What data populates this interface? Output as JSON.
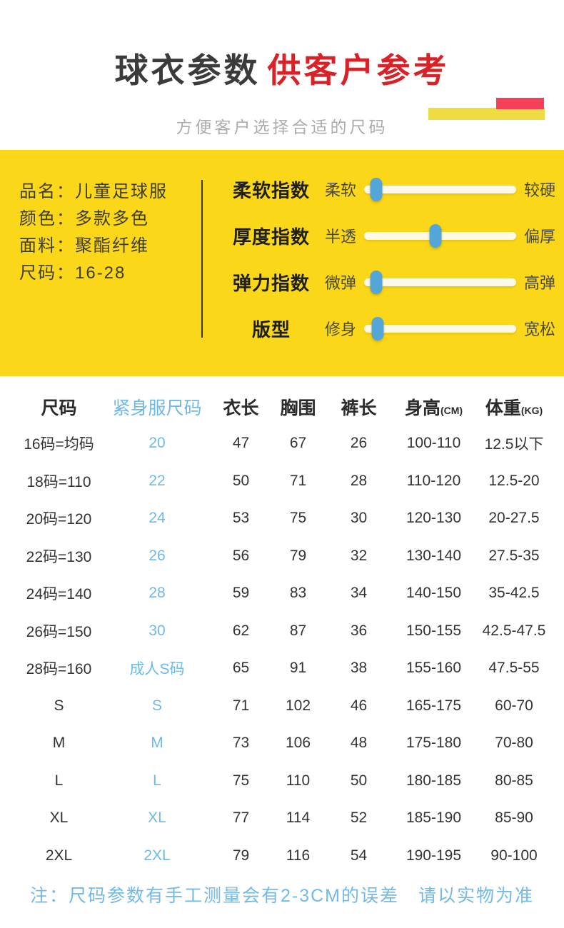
{
  "hero": {
    "title_black": "球衣参数",
    "title_red": "供客户参考",
    "subtitle": "方便客户选择合适的尺码"
  },
  "colors": {
    "panel_yellow": "#FAD718",
    "deco_yellow": "#EFDB42",
    "deco_pink": "#F4415A",
    "title_red": "#D92227",
    "title_dark": "#3B3B3B",
    "subtitle_gray": "#ACACAC",
    "accent_blue": "#6FB9E9",
    "handle_blue": "#54A6D9",
    "track_cream": "#FCF9E9"
  },
  "panel": {
    "info_lines": [
      "品名：儿童足球服",
      "颜色：多款多色",
      "面料：聚酯纤维",
      "尺码：16-28"
    ],
    "sliders": [
      {
        "name": "柔软指数",
        "left": "柔软",
        "right": "较硬",
        "percent": 8
      },
      {
        "name": "厚度指数",
        "left": "半透",
        "right": "偏厚",
        "percent": 47
      },
      {
        "name": "弹力指数",
        "left": "微弹",
        "right": "高弹",
        "percent": 8
      },
      {
        "name": "版型",
        "left": "修身",
        "right": "宽松",
        "percent": 9
      }
    ]
  },
  "table": {
    "headers": [
      {
        "label": "尺码",
        "unit": ""
      },
      {
        "label": "紧身服尺码",
        "unit": ""
      },
      {
        "label": "衣长",
        "unit": ""
      },
      {
        "label": "胸围",
        "unit": ""
      },
      {
        "label": "裤长",
        "unit": ""
      },
      {
        "label": "身高",
        "unit": "(CM)"
      },
      {
        "label": "体重",
        "unit": "(KG)"
      }
    ],
    "rows": [
      [
        "16码=均码",
        "20",
        "47",
        "67",
        "26",
        "100-110",
        "12.5以下"
      ],
      [
        "18码=110",
        "22",
        "50",
        "71",
        "28",
        "110-120",
        "12.5-20"
      ],
      [
        "20码=120",
        "24",
        "53",
        "75",
        "30",
        "120-130",
        "20-27.5"
      ],
      [
        "22码=130",
        "26",
        "56",
        "79",
        "32",
        "130-140",
        "27.5-35"
      ],
      [
        "24码=140",
        "28",
        "59",
        "83",
        "34",
        "140-150",
        "35-42.5"
      ],
      [
        "26码=150",
        "30",
        "62",
        "87",
        "36",
        "150-155",
        "42.5-47.5"
      ],
      [
        "28码=160",
        "成人S码",
        "65",
        "91",
        "38",
        "155-160",
        "47.5-55"
      ],
      [
        "S",
        "S",
        "71",
        "102",
        "46",
        "165-175",
        "60-70"
      ],
      [
        "M",
        "M",
        "73",
        "106",
        "48",
        "175-180",
        "70-80"
      ],
      [
        "L",
        "L",
        "75",
        "110",
        "50",
        "180-185",
        "80-85"
      ],
      [
        "XL",
        "XL",
        "77",
        "114",
        "52",
        "185-190",
        "85-90"
      ],
      [
        "2XL",
        "2XL",
        "79",
        "116",
        "54",
        "190-195",
        "90-100"
      ]
    ]
  },
  "footnote": "注：尺码参数有手工测量会有2-3CM的误差　请以实物为准"
}
